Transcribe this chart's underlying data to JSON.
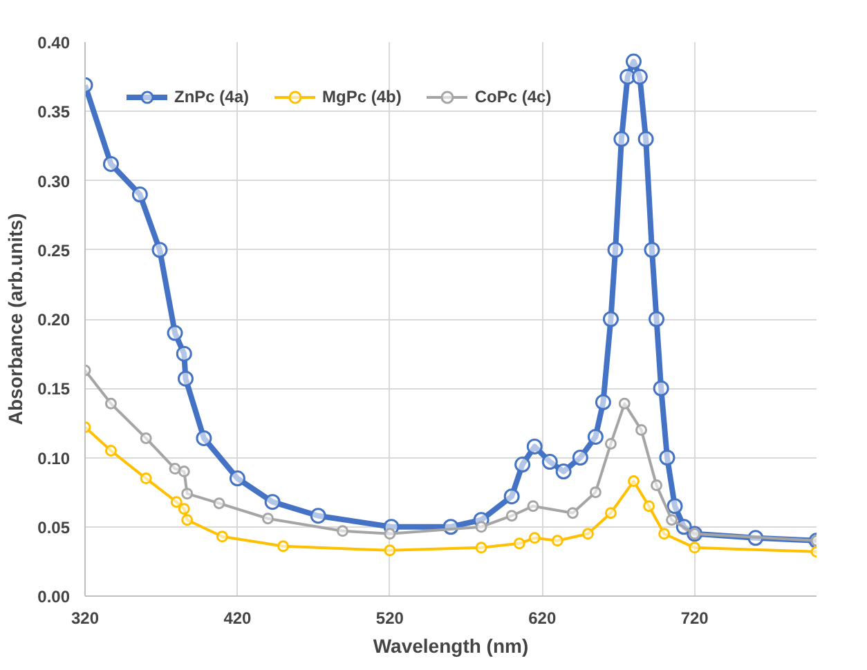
{
  "chart_data": {
    "type": "line",
    "xlabel": "Wavelength (nm)",
    "ylabel": "Absorbance (arb.units)",
    "xlim": [
      320,
      800
    ],
    "xticks": [
      320,
      420,
      520,
      620,
      720
    ],
    "ylim": [
      0,
      0.4
    ],
    "yticks": [
      {
        "value": 0,
        "label": "0.00"
      },
      {
        "value": 0.05,
        "label": "0.05"
      },
      {
        "value": 0.1,
        "label": "0.10"
      },
      {
        "value": 0.15,
        "label": "0.15"
      },
      {
        "value": 0.2,
        "label": "0.20"
      },
      {
        "value": 0.25,
        "label": "0.25"
      },
      {
        "value": 0.3,
        "label": "0.30"
      },
      {
        "value": 0.35,
        "label": "0.35"
      },
      {
        "value": 0.4,
        "label": "0.40"
      }
    ],
    "grid": true,
    "legend": "top",
    "marker": "circle",
    "line_style": "solid",
    "series": [
      {
        "name": "ZnPc (4a)",
        "color": "#4472c4",
        "x": [
          320,
          337,
          356,
          369,
          379,
          385,
          386,
          398,
          420,
          443,
          473,
          521,
          560,
          580,
          600,
          607,
          615,
          625,
          634,
          645,
          655,
          660,
          665,
          668,
          672,
          676,
          680,
          684,
          688,
          692,
          695,
          698,
          702,
          707,
          713,
          720,
          760,
          800
        ],
        "values": [
          0.369,
          0.312,
          0.29,
          0.25,
          0.19,
          0.175,
          0.157,
          0.114,
          0.085,
          0.068,
          0.058,
          0.05,
          0.05,
          0.055,
          0.072,
          0.095,
          0.108,
          0.097,
          0.09,
          0.1,
          0.115,
          0.14,
          0.2,
          0.25,
          0.33,
          0.375,
          0.386,
          0.375,
          0.33,
          0.25,
          0.2,
          0.15,
          0.1,
          0.065,
          0.05,
          0.045,
          0.042,
          0.04
        ]
      },
      {
        "name": "MgPc (4b)",
        "color": "#ffc000",
        "x": [
          320,
          337,
          360,
          380,
          385,
          387,
          410,
          450,
          520,
          580,
          605,
          615,
          630,
          650,
          665,
          680,
          690,
          700,
          720,
          800
        ],
        "values": [
          0.122,
          0.105,
          0.085,
          0.068,
          0.063,
          0.055,
          0.043,
          0.036,
          0.033,
          0.035,
          0.038,
          0.042,
          0.04,
          0.045,
          0.06,
          0.083,
          0.065,
          0.045,
          0.035,
          0.032
        ]
      },
      {
        "name": "CoPc (4c)",
        "color": "#a5a5a5",
        "x": [
          320,
          337,
          360,
          379,
          385,
          387,
          408,
          440,
          489,
          520,
          580,
          600,
          614,
          640,
          655,
          665,
          674,
          685,
          695,
          705,
          720,
          800
        ],
        "values": [
          0.163,
          0.139,
          0.114,
          0.092,
          0.09,
          0.074,
          0.067,
          0.056,
          0.047,
          0.045,
          0.05,
          0.058,
          0.065,
          0.06,
          0.075,
          0.11,
          0.139,
          0.12,
          0.08,
          0.055,
          0.045,
          0.04
        ]
      }
    ]
  }
}
